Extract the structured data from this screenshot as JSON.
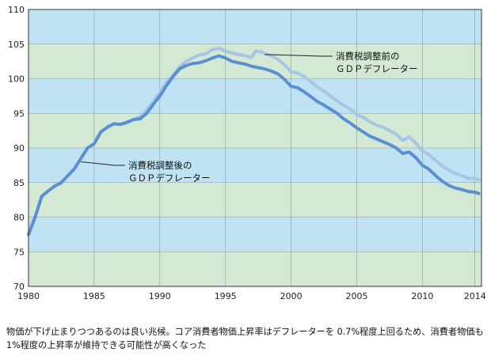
{
  "chart_data": {
    "type": "line",
    "title": "",
    "xlabel": "",
    "ylabel": "",
    "xlim": [
      1980,
      2014.5
    ],
    "ylim": [
      70,
      110
    ],
    "x_ticks": [
      "1980",
      "1985",
      "1990",
      "1995",
      "2000",
      "2005",
      "2010",
      "2014"
    ],
    "y_ticks": [
      "70",
      "75",
      "80",
      "85",
      "90",
      "95",
      "100",
      "105",
      "110"
    ],
    "grid": true,
    "band_colors": [
      "#d4e9d3",
      "#bfe3f3"
    ],
    "series": [
      {
        "name": "消費税調整前のＧＤＰデフレーター",
        "color": "#a7c6e6",
        "points": [
          [
            1980.0,
            77.5
          ],
          [
            1980.5,
            80.0
          ],
          [
            1981.0,
            83.0
          ],
          [
            1981.5,
            83.8
          ],
          [
            1982.0,
            84.5
          ],
          [
            1982.5,
            85.0
          ],
          [
            1983.0,
            86.0
          ],
          [
            1983.5,
            87.0
          ],
          [
            1984.0,
            88.5
          ],
          [
            1984.5,
            90.0
          ],
          [
            1985.0,
            90.6
          ],
          [
            1985.5,
            92.3
          ],
          [
            1986.0,
            93.0
          ],
          [
            1986.5,
            93.5
          ],
          [
            1987.0,
            93.4
          ],
          [
            1987.5,
            93.7
          ],
          [
            1988.0,
            94.1
          ],
          [
            1988.5,
            94.5
          ],
          [
            1989.0,
            95.5
          ],
          [
            1989.5,
            96.7
          ],
          [
            1990.0,
            98.0
          ],
          [
            1990.5,
            99.5
          ],
          [
            1991.0,
            100.5
          ],
          [
            1991.5,
            101.7
          ],
          [
            1992.0,
            102.5
          ],
          [
            1992.5,
            103.0
          ],
          [
            1993.0,
            103.4
          ],
          [
            1993.5,
            103.6
          ],
          [
            1994.0,
            104.2
          ],
          [
            1994.5,
            104.4
          ],
          [
            1995.0,
            104.0
          ],
          [
            1995.5,
            103.7
          ],
          [
            1996.0,
            103.5
          ],
          [
            1996.5,
            103.3
          ],
          [
            1997.0,
            103.1
          ],
          [
            1997.3,
            104.0
          ],
          [
            1997.7,
            103.9
          ],
          [
            1998.0,
            103.6
          ],
          [
            1998.5,
            103.3
          ],
          [
            1999.0,
            102.8
          ],
          [
            1999.5,
            102.0
          ],
          [
            2000.0,
            101.0
          ],
          [
            2000.5,
            100.8
          ],
          [
            2001.0,
            100.3
          ],
          [
            2001.5,
            99.6
          ],
          [
            2002.0,
            98.8
          ],
          [
            2002.5,
            98.2
          ],
          [
            2003.0,
            97.5
          ],
          [
            2003.5,
            96.8
          ],
          [
            2004.0,
            96.2
          ],
          [
            2004.5,
            95.6
          ],
          [
            2005.0,
            94.8
          ],
          [
            2005.5,
            94.4
          ],
          [
            2006.0,
            93.8
          ],
          [
            2006.5,
            93.3
          ],
          [
            2007.0,
            93.0
          ],
          [
            2007.5,
            92.5
          ],
          [
            2008.0,
            92.0
          ],
          [
            2008.5,
            91.1
          ],
          [
            2009.0,
            91.6
          ],
          [
            2009.5,
            90.7
          ],
          [
            2010.0,
            89.6
          ],
          [
            2010.5,
            89.0
          ],
          [
            2011.0,
            88.2
          ],
          [
            2011.5,
            87.4
          ],
          [
            2012.0,
            86.8
          ],
          [
            2012.5,
            86.3
          ],
          [
            2013.0,
            86.0
          ],
          [
            2013.5,
            85.6
          ],
          [
            2014.0,
            85.6
          ],
          [
            2014.3,
            85.4
          ]
        ]
      },
      {
        "name": "消費税調整後のＧＤＰデフレーター",
        "color": "#5b8fd4",
        "points": [
          [
            1980.0,
            77.5
          ],
          [
            1980.5,
            80.0
          ],
          [
            1981.0,
            83.0
          ],
          [
            1981.5,
            83.8
          ],
          [
            1982.0,
            84.5
          ],
          [
            1982.5,
            85.0
          ],
          [
            1983.0,
            86.0
          ],
          [
            1983.5,
            87.0
          ],
          [
            1984.0,
            88.5
          ],
          [
            1984.5,
            90.0
          ],
          [
            1985.0,
            90.6
          ],
          [
            1985.5,
            92.3
          ],
          [
            1986.0,
            93.0
          ],
          [
            1986.5,
            93.5
          ],
          [
            1987.0,
            93.4
          ],
          [
            1987.5,
            93.7
          ],
          [
            1988.0,
            94.1
          ],
          [
            1988.5,
            94.2
          ],
          [
            1989.0,
            95.0
          ],
          [
            1989.5,
            96.3
          ],
          [
            1990.0,
            97.5
          ],
          [
            1990.5,
            99.0
          ],
          [
            1991.0,
            100.3
          ],
          [
            1991.5,
            101.4
          ],
          [
            1992.0,
            101.9
          ],
          [
            1992.5,
            102.2
          ],
          [
            1993.0,
            102.3
          ],
          [
            1993.5,
            102.6
          ],
          [
            1994.0,
            103.0
          ],
          [
            1994.5,
            103.3
          ],
          [
            1995.0,
            103.0
          ],
          [
            1995.5,
            102.5
          ],
          [
            1996.0,
            102.3
          ],
          [
            1996.5,
            102.1
          ],
          [
            1997.0,
            101.8
          ],
          [
            1997.5,
            101.6
          ],
          [
            1998.0,
            101.4
          ],
          [
            1998.5,
            101.1
          ],
          [
            1999.0,
            100.7
          ],
          [
            1999.5,
            99.9
          ],
          [
            2000.0,
            98.9
          ],
          [
            2000.5,
            98.7
          ],
          [
            2001.0,
            98.1
          ],
          [
            2001.5,
            97.4
          ],
          [
            2002.0,
            96.7
          ],
          [
            2002.5,
            96.2
          ],
          [
            2003.0,
            95.6
          ],
          [
            2003.5,
            95.0
          ],
          [
            2004.0,
            94.2
          ],
          [
            2004.5,
            93.6
          ],
          [
            2005.0,
            92.9
          ],
          [
            2005.5,
            92.3
          ],
          [
            2006.0,
            91.7
          ],
          [
            2006.5,
            91.3
          ],
          [
            2007.0,
            90.9
          ],
          [
            2007.5,
            90.5
          ],
          [
            2008.0,
            90.0
          ],
          [
            2008.5,
            89.2
          ],
          [
            2009.0,
            89.4
          ],
          [
            2009.5,
            88.6
          ],
          [
            2010.0,
            87.5
          ],
          [
            2010.5,
            86.9
          ],
          [
            2011.0,
            86.0
          ],
          [
            2011.5,
            85.2
          ],
          [
            2012.0,
            84.6
          ],
          [
            2012.5,
            84.2
          ],
          [
            2013.0,
            84.0
          ],
          [
            2013.5,
            83.7
          ],
          [
            2014.0,
            83.6
          ],
          [
            2014.3,
            83.4
          ]
        ]
      }
    ],
    "annotations": [
      {
        "line1": "消費税調整前の",
        "line2": "ＧＤＰデフレーター",
        "target_x": 1998.0,
        "target_y": 103.5
      },
      {
        "line1": "消費税調整後の",
        "line2": "ＧＤＰデフレーター",
        "target_x": 1984.0,
        "target_y": 88.0
      }
    ]
  },
  "caption": "物価が下げ止まりつつあるのは良い兆候。コア消費者物価上昇率はデフレーターを 0.7%程度上回るため、消費者物価も 1%程度の上昇率が維持できる可能性が高くなった"
}
